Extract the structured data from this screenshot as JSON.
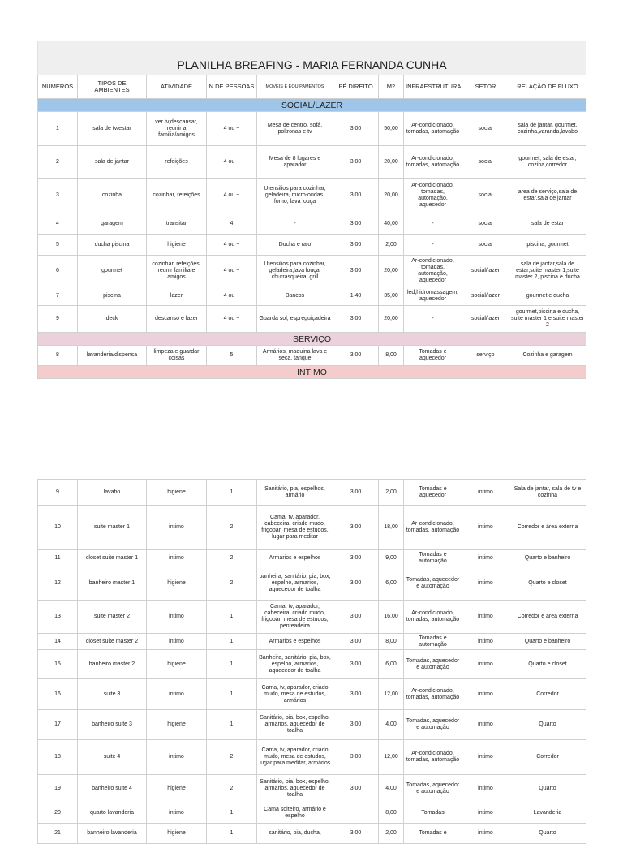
{
  "title": "PLANILHA BREAFING - MARIA FERNANDA CUNHA",
  "headers": [
    "NUMEROS",
    "TIPOS DE AMBIENTES",
    "ATIVIDADE",
    "N DE PESSOAS",
    "MOVEIS E EQUIPAMENTOS",
    "PÉ DIREITO",
    "M2",
    "INFRAESTRUTURA",
    "SETOR",
    "RELAÇÃO DE FLUXO"
  ],
  "section_colors": {
    "social": "#9fc5e8",
    "servico": "#ead1dc",
    "intimo": "#f4cccc"
  },
  "sections": {
    "social": {
      "label": "SOCIAL/LAZER",
      "rows": [
        [
          "1",
          "sala de tv/estar",
          "ver tv,descansar, reunir a familia/amigos",
          "4 ou +",
          "Mesa de centro, sofá, poltronas e tv",
          "3,00",
          "50,00",
          "Ar-condicionado, tomadas, automação",
          "social",
          "sala de jantar, gourmet, cozinha,varanda,lavabo"
        ],
        [
          "2",
          "sala de jantar",
          "refeições",
          "4 ou +",
          "Mesa de 8 lugares e aparador",
          "3,00",
          "20,00",
          "Ar-condicionado, tomadas, automação",
          "social",
          "gourmet, sala de estar, coziha,corredor"
        ],
        [
          "3",
          "cozinha",
          "cozinhar, refeições",
          "4 ou +",
          "Utensilios para cozinhar, geladeira, micro-ondas, forno, lava louça",
          "3,00",
          "20,00",
          "Ar-condicionado, tomadas, automação, aquecedor",
          "social",
          "area de serviço,sala de estar,sala de jantar"
        ],
        [
          "4",
          "garagem",
          "transitar",
          "4",
          "-",
          "3,00",
          "40,00",
          "-",
          "social",
          "sala de estar"
        ],
        [
          "5",
          "ducha piscina",
          "higiene",
          "4 ou +",
          "Ducha e ralo",
          "3,00",
          "2,00",
          "-",
          "social",
          "piscina, gourmet"
        ],
        [
          "6",
          "gourmet",
          "cozinhar, refeições, reunir familia e amigos",
          "4 ou +",
          "Utensilios para cozinhar, geladeira,lava louça, churrasqueira, grill",
          "3,00",
          "20,00",
          "Ar-condicionado, tomadas, automação, aquecedor",
          "social/lazer",
          "sala de jantar,sala de estar,suite master 1,suite master 2, piscina e ducha"
        ],
        [
          "7",
          "piscina",
          "lazer",
          "4 ou +",
          "Bancos",
          "1,40",
          "35,00",
          "led,hidromassagem, aquecedor",
          "social/lazer",
          "gourmet e ducha"
        ],
        [
          "9",
          "deck",
          "descanso e lazer",
          "4 ou +",
          "Guarda sol, espreguiçadeira",
          "3,00",
          "20,00",
          "-",
          "social/lazer",
          "gourmet,piscina e ducha, suite master 1 e suite master 2"
        ]
      ]
    },
    "servico": {
      "label": "SERVIÇO",
      "rows": [
        [
          "8",
          "lavanderia/dispensa",
          "limpeza e guardar coisas",
          "5",
          "Armários, maquina lava e seca, tanque",
          "3,00",
          "8,00",
          "Tomadas e aquecedor",
          "serviço",
          "Cozinha e garagem"
        ]
      ]
    },
    "intimo": {
      "label": "INTIMO",
      "rows": [
        [
          "9",
          "lavabo",
          "higiene",
          "1",
          "Sanitário, pia, espelhos, armário",
          "3,00",
          "2,00",
          "Tomadas e aquecedor",
          "intimo",
          "Sala de jantar, sala de tv e cozinha"
        ],
        [
          "10",
          "suite master 1",
          "intimo",
          "2",
          "Cama, tv, aparador, cabeceira, criado mudo, frigobar, mesa de estudos, lugar para meditar",
          "3,00",
          "18,00",
          "Ar-condicionado, tomadas, automação",
          "intimo",
          "Corredor e área externa"
        ],
        [
          "11",
          "closet suite master 1",
          "intimo",
          "2",
          "Armários e espelhos",
          "3,00",
          "9,00",
          "Tomadas e automação",
          "intimo",
          "Quarto e banheiro"
        ],
        [
          "12",
          "banheiro master 1",
          "higiene",
          "2",
          "banheira, sanitário, pia, box, espelho, armarios, aquecedor de toalha",
          "3,00",
          "6,00",
          "Tomadas, aquecedor e automação",
          "intimo",
          "Quarto e closet"
        ],
        [
          "13",
          "suite master 2",
          "intimo",
          "1",
          "Cama, tv, aparador, cabeceira, criado mudo, frigobar, mesa de estudos, penteadeira",
          "3,00",
          "16,00",
          "Ar-condicionado, tomadas, automação",
          "intimo",
          "Corredor e área externa"
        ],
        [
          "14",
          "closet suite master 2",
          "intimo",
          "1",
          "Armarios e espelhos",
          "3,00",
          "8,00",
          "Tomadas e automação",
          "intimo",
          "Quarto e banheiro"
        ],
        [
          "15",
          "banheiro master 2",
          "higiene",
          "1",
          "Banheira, sanitário, pia, box, espelho, armarios, aquecedor de toalha",
          "3,00",
          "6,00",
          "Tomadas, aquecedor e automação",
          "intimo",
          "Quarto e closet"
        ],
        [
          "16",
          "suite 3",
          "intimo",
          "1",
          "Cama, tv, aparador, criado mudo, mesa de estudos, armários",
          "3,00",
          "12,00",
          "Ar-condicionado, tomadas, automação",
          "intimo",
          "Corredor"
        ],
        [
          "17",
          "banheiro suite 3",
          "higiene",
          "1",
          "Sanitário, pia, box, espelho, armarios, aquecedor de toalha",
          "3,00",
          "4,00",
          "Tomadas, aquecedor e automação",
          "intimo",
          "Quarto"
        ],
        [
          "18",
          "suite 4",
          "intimo",
          "2",
          "Cama, tv, aparador, criado mudo, mesa de estudos, lugar para meditar, armários",
          "3,00",
          "12,00",
          "Ar-condicionado, tomadas, automação",
          "intimo",
          "Corredor"
        ],
        [
          "19",
          "banheiro suite 4",
          "higiene",
          "2",
          "Sanitário, pia, box, espelho, armarios, aquecedor de toalha",
          "3,00",
          "4,00",
          "Tomadas, aquecedor e automação",
          "intimo",
          "Quarto"
        ],
        [
          "20",
          "quarto lavanderia",
          "intimo",
          "1",
          "Cama solteiro, armário e espelho",
          "",
          "8,00",
          "Tomadas",
          "intimo",
          "Lavanderia"
        ],
        [
          "21",
          "banheiro lavanderia",
          "higiene",
          "1",
          "sanitário, pia, ducha,",
          "3,00",
          "2,00",
          "Tomadas e",
          "intimo",
          "Quarto"
        ]
      ]
    }
  }
}
